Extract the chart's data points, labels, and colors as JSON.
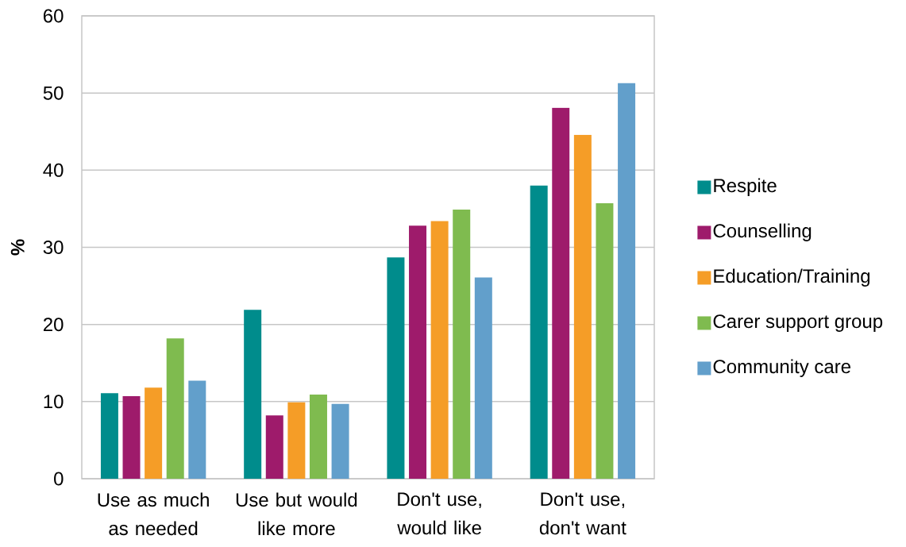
{
  "chart_data": {
    "type": "bar",
    "ylabel": "%",
    "categories": [
      "Use as much as needed",
      "Use but would like more",
      "Don't use, would like",
      "Don't use, don't want"
    ],
    "series": [
      {
        "name": "Respite",
        "color": "#008c8c",
        "values": [
          11.1,
          21.9,
          28.7,
          38.0
        ]
      },
      {
        "name": "Counselling",
        "color": "#9e1b6b",
        "values": [
          10.7,
          8.2,
          32.8,
          48.1
        ]
      },
      {
        "name": "Education/Training",
        "color": "#f59d27",
        "values": [
          11.8,
          9.9,
          33.4,
          44.6
        ]
      },
      {
        "name": "Carer support group",
        "color": "#7fbb4f",
        "values": [
          18.2,
          10.9,
          34.9,
          35.7
        ]
      },
      {
        "name": "Community care",
        "color": "#629fcb",
        "values": [
          12.7,
          9.7,
          26.1,
          51.3
        ]
      }
    ],
    "ylim": [
      0,
      60
    ],
    "yticks": [
      0,
      10,
      20,
      30,
      40,
      50,
      60
    ],
    "grid": "y",
    "legend": "right"
  }
}
